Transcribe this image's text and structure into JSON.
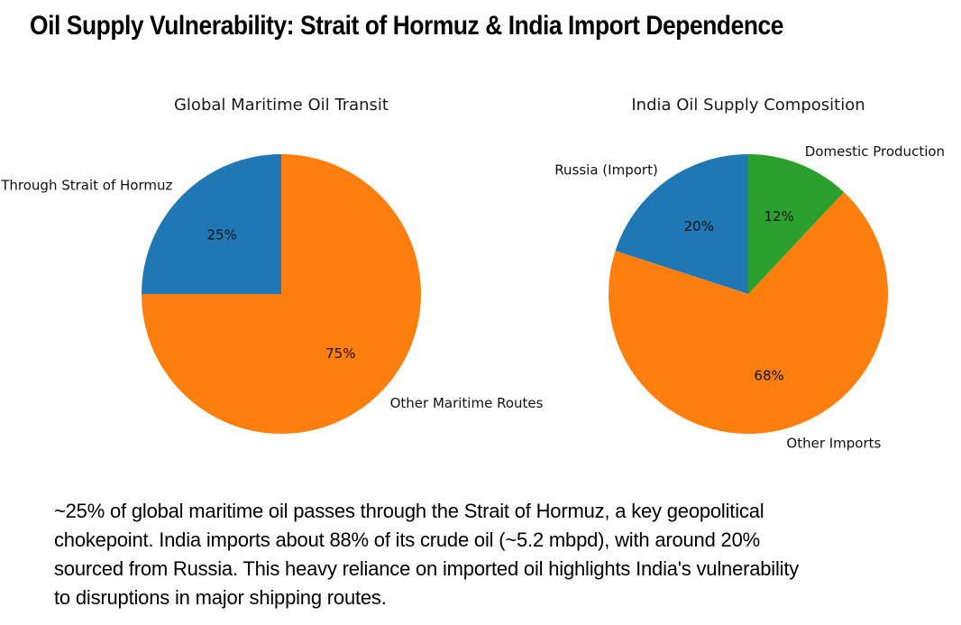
{
  "page": {
    "title": "Oil Supply Vulnerability: Strait of Hormuz & India Import Dependence",
    "caption_lines": [
      "~25% of global maritime oil passes through the Strait of Hormuz, a key geopolitical",
      "chokepoint. India imports about 88% of its crude oil (~5.2 mbpd), with around 20%",
      "sourced from Russia. This heavy reliance on imported oil highlights India's vulnerability",
      "to disruptions in major shipping routes."
    ]
  },
  "colors": {
    "blue": "#1f77b4",
    "orange": "#ff7f0e",
    "green": "#2ca02c",
    "text": "#111111"
  },
  "chart_data": [
    {
      "type": "pie",
      "title": "Global Maritime Oil Transit",
      "start_angle": 90,
      "counterclockwise": true,
      "slices": [
        {
          "label": "Through Strait of Hormuz",
          "value": 25,
          "pct_label": "25%",
          "color": "#1f77b4"
        },
        {
          "label": "Other Maritime Routes",
          "value": 75,
          "pct_label": "75%",
          "color": "#ff7f0e"
        }
      ]
    },
    {
      "type": "pie",
      "title": "India Oil Supply Composition",
      "start_angle": 90,
      "counterclockwise": true,
      "slices": [
        {
          "label": "Russia (Import)",
          "value": 20,
          "pct_label": "20%",
          "color": "#1f77b4"
        },
        {
          "label": "Other Imports",
          "value": 68,
          "pct_label": "68%",
          "color": "#ff7f0e"
        },
        {
          "label": "Domestic Production",
          "value": 12,
          "pct_label": "12%",
          "color": "#2ca02c"
        }
      ]
    }
  ]
}
